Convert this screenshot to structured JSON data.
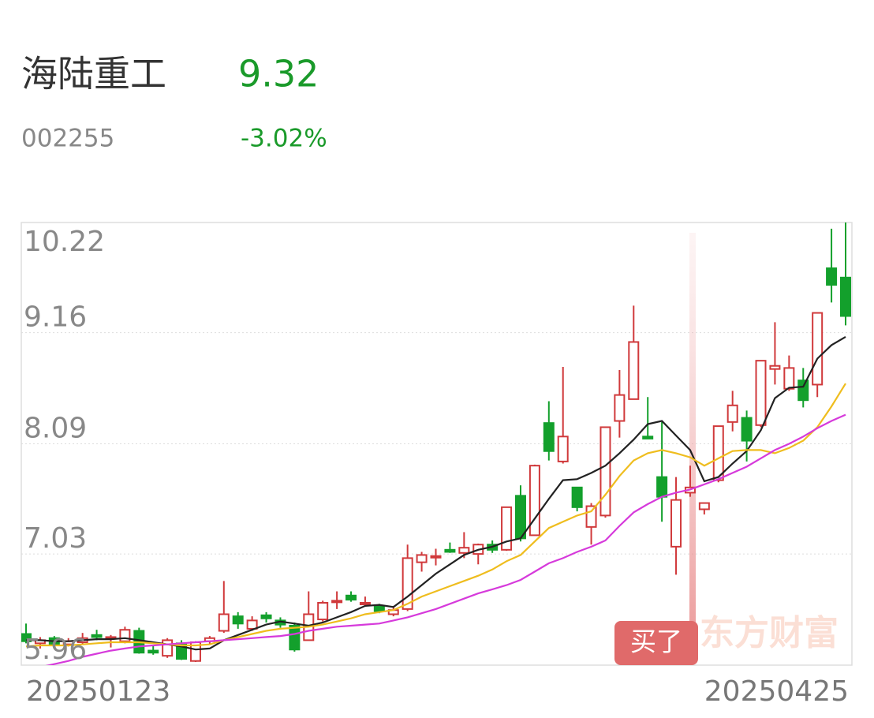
{
  "chart_data": {
    "type": "candlestick",
    "title": "海陆重工",
    "price": 9.32,
    "code": "002255",
    "change": "-3.02%",
    "badge": "买了",
    "watermark": "东方财富",
    "up_color": "#d0393b",
    "down_color": "#13a02c",
    "ylim": [
      5.96,
      10.22
    ],
    "yticks": [
      10.22,
      9.16,
      8.09,
      7.03,
      5.96
    ],
    "grid": true,
    "categories": [
      "20250123",
      null,
      null,
      null,
      null,
      null,
      null,
      null,
      null,
      null,
      null,
      null,
      null,
      null,
      null,
      null,
      null,
      null,
      null,
      null,
      null,
      null,
      null,
      null,
      null,
      null,
      null,
      null,
      null,
      null,
      null,
      null,
      null,
      null,
      null,
      null,
      null,
      null,
      null,
      null,
      null,
      null,
      null,
      null,
      null,
      null,
      null,
      null,
      null,
      null,
      null,
      null,
      null,
      null,
      null,
      null,
      null,
      null,
      "20250425"
    ],
    "open": [
      6.26,
      6.17,
      6.22,
      6.16,
      6.18,
      6.25,
      6.22,
      6.19,
      6.29,
      6.1,
      6.05,
      6.17,
      6.0,
      6.19,
      6.29,
      6.43,
      6.31,
      6.44,
      6.39,
      6.34,
      6.2,
      6.4,
      6.57,
      6.63,
      6.55,
      6.53,
      6.45,
      6.5,
      6.95,
      7.0,
      7.07,
      7.04,
      7.03,
      7.12,
      7.07,
      7.59,
      7.21,
      8.29,
      7.92,
      7.67,
      7.29,
      7.4,
      8.31,
      8.52,
      8.16,
      7.77,
      7.1,
      7.62,
      7.46,
      7.74,
      8.3,
      8.34,
      8.27,
      8.81,
      8.62,
      8.7,
      8.66,
      9.78,
      9.69
    ],
    "high": [
      6.36,
      6.23,
      6.24,
      6.22,
      6.27,
      6.3,
      6.25,
      6.33,
      6.32,
      6.15,
      6.22,
      6.2,
      6.19,
      6.24,
      6.77,
      6.47,
      6.43,
      6.47,
      6.42,
      6.37,
      6.67,
      6.58,
      6.67,
      6.67,
      6.62,
      6.55,
      6.53,
      7.12,
      7.05,
      7.08,
      7.14,
      7.24,
      7.13,
      7.16,
      7.48,
      7.69,
      7.89,
      8.5,
      8.83,
      7.67,
      7.52,
      8.25,
      8.8,
      9.42,
      8.54,
      8.3,
      7.77,
      7.88,
      7.52,
      8.26,
      8.6,
      8.41,
      8.89,
      9.26,
      8.94,
      8.82,
      9.35,
      10.16,
      10.22
    ],
    "low": [
      6.17,
      6.12,
      6.13,
      6.14,
      6.16,
      6.2,
      6.13,
      6.17,
      6.07,
      6.06,
      6.03,
      6.01,
      5.99,
      6.16,
      6.27,
      6.31,
      6.29,
      6.37,
      6.32,
      6.09,
      6.2,
      6.38,
      6.5,
      6.57,
      6.53,
      6.46,
      6.43,
      6.48,
      6.86,
      6.92,
      7.04,
      6.99,
      6.93,
      7.04,
      7.06,
      7.15,
      7.22,
      7.93,
      7.9,
      7.44,
      7.12,
      7.38,
      8.15,
      8.52,
      8.14,
      7.34,
      6.83,
      7.58,
      7.41,
      7.72,
      8.21,
      7.92,
      8.25,
      8.66,
      8.6,
      8.44,
      8.54,
      9.45,
      9.23
    ],
    "close": [
      6.19,
      6.2,
      6.15,
      6.19,
      6.22,
      6.23,
      6.23,
      6.3,
      6.08,
      6.08,
      6.2,
      6.02,
      6.18,
      6.22,
      6.45,
      6.36,
      6.39,
      6.41,
      6.35,
      6.11,
      6.45,
      6.56,
      6.58,
      6.59,
      6.56,
      6.48,
      6.49,
      6.99,
      7.02,
      7.01,
      7.05,
      7.09,
      7.12,
      7.07,
      7.48,
      7.18,
      7.88,
      8.02,
      8.16,
      7.48,
      7.49,
      8.25,
      8.56,
      9.07,
      8.14,
      7.58,
      7.55,
      7.67,
      7.52,
      8.26,
      8.46,
      8.12,
      8.89,
      8.84,
      8.82,
      8.51,
      9.35,
      9.62,
      9.32
    ],
    "lines": [
      {
        "color": "#222222",
        "values": [
          6.2,
          6.2,
          6.19,
          6.19,
          6.2,
          6.21,
          6.21,
          6.22,
          6.2,
          6.18,
          6.16,
          6.14,
          6.11,
          6.12,
          6.2,
          6.25,
          6.3,
          6.35,
          6.38,
          6.36,
          6.34,
          6.37,
          6.42,
          6.47,
          6.53,
          6.54,
          6.52,
          6.62,
          6.73,
          6.84,
          6.93,
          7.02,
          7.07,
          7.1,
          7.15,
          7.18,
          7.37,
          7.56,
          7.74,
          7.75,
          7.81,
          7.88,
          8.0,
          8.13,
          8.28,
          8.31,
          8.17,
          8.03,
          7.73,
          7.77,
          7.9,
          8.02,
          8.22,
          8.53,
          8.63,
          8.64,
          8.91,
          9.04,
          9.12
        ]
      },
      {
        "color": "#efbd1e",
        "values": [
          6.14,
          6.15,
          6.15,
          6.15,
          6.16,
          6.17,
          6.18,
          6.18,
          6.18,
          6.17,
          6.16,
          6.15,
          6.15,
          6.16,
          6.2,
          6.23,
          6.26,
          6.29,
          6.31,
          6.32,
          6.33,
          6.35,
          6.38,
          6.41,
          6.45,
          6.47,
          6.49,
          6.55,
          6.62,
          6.67,
          6.72,
          6.77,
          6.82,
          6.88,
          6.96,
          7.02,
          7.15,
          7.28,
          7.34,
          7.4,
          7.44,
          7.6,
          7.78,
          7.93,
          8.0,
          8.03,
          8.0,
          7.96,
          7.88,
          7.95,
          8.02,
          8.03,
          8.03,
          8.0,
          8.05,
          8.12,
          8.25,
          8.45,
          8.67
        ]
      },
      {
        "color": "#d63adb",
        "values": [
          5.91,
          5.94,
          5.97,
          6.0,
          6.04,
          6.07,
          6.1,
          6.12,
          6.14,
          6.15,
          6.16,
          6.17,
          6.18,
          6.19,
          6.2,
          6.21,
          6.22,
          6.23,
          6.24,
          6.26,
          6.29,
          6.31,
          6.33,
          6.34,
          6.35,
          6.36,
          6.39,
          6.42,
          6.46,
          6.5,
          6.55,
          6.6,
          6.65,
          6.69,
          6.73,
          6.78,
          6.86,
          6.94,
          6.99,
          7.05,
          7.1,
          7.16,
          7.3,
          7.43,
          7.51,
          7.58,
          7.62,
          7.65,
          7.7,
          7.75,
          7.81,
          7.87,
          7.95,
          8.03,
          8.09,
          8.16,
          8.24,
          8.31,
          8.37
        ]
      }
    ]
  }
}
